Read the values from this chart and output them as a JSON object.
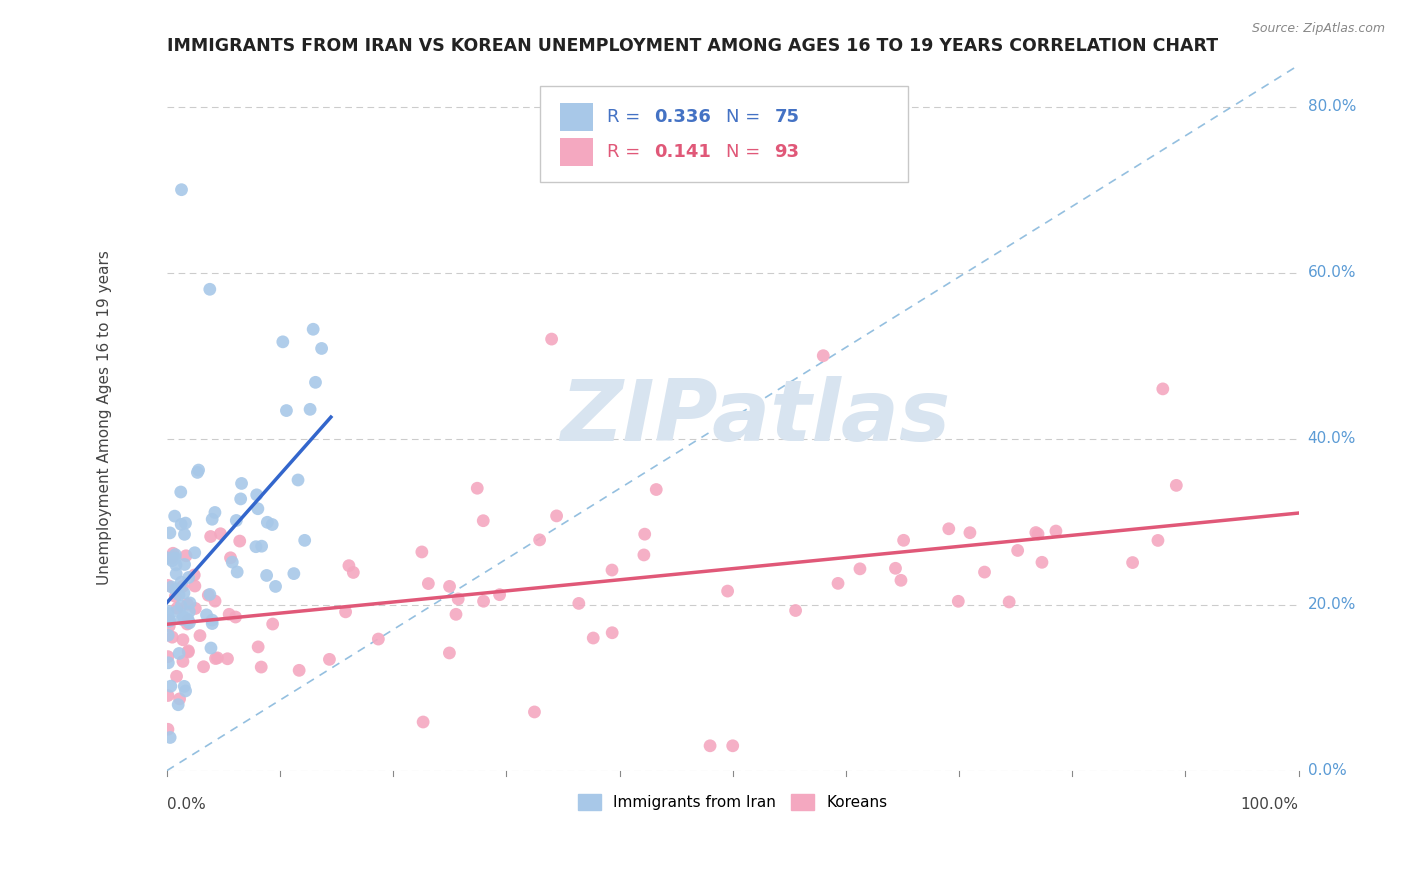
{
  "title": "IMMIGRANTS FROM IRAN VS KOREAN UNEMPLOYMENT AMONG AGES 16 TO 19 YEARS CORRELATION CHART",
  "source": "Source: ZipAtlas.com",
  "ylabel": "Unemployment Among Ages 16 to 19 years",
  "xlim": [
    0.0,
    1.0
  ],
  "ylim": [
    0.0,
    0.85
  ],
  "ytick_vals": [
    0.0,
    0.2,
    0.4,
    0.6,
    0.8
  ],
  "ytick_labels": [
    "0.0%",
    "20.0%",
    "40.0%",
    "60.0%",
    "80.0%"
  ],
  "xtick_left": "0.0%",
  "xtick_right": "100.0%",
  "series1_color": "#a8c8e8",
  "series2_color": "#f4a8c0",
  "trendline1_color": "#3366cc",
  "trendline2_color": "#e05878",
  "diag_color": "#7ab0d8",
  "legend_bottom": [
    "Immigrants from Iran",
    "Koreans"
  ],
  "watermark_text": "ZIPatlas",
  "legend_r1": "R = ",
  "legend_v1": "0.336",
  "legend_n1": "N = ",
  "legend_nv1": "75",
  "legend_r2": "R =  ",
  "legend_v2": "0.141",
  "legend_n2": "N = ",
  "legend_nv2": "93",
  "text_color_blue": "#4472c4",
  "text_color_pink": "#e05878",
  "text_color_dark": "#222222",
  "right_label_color": "#5b9bd5",
  "grid_color": "#cccccc",
  "background": "#ffffff"
}
